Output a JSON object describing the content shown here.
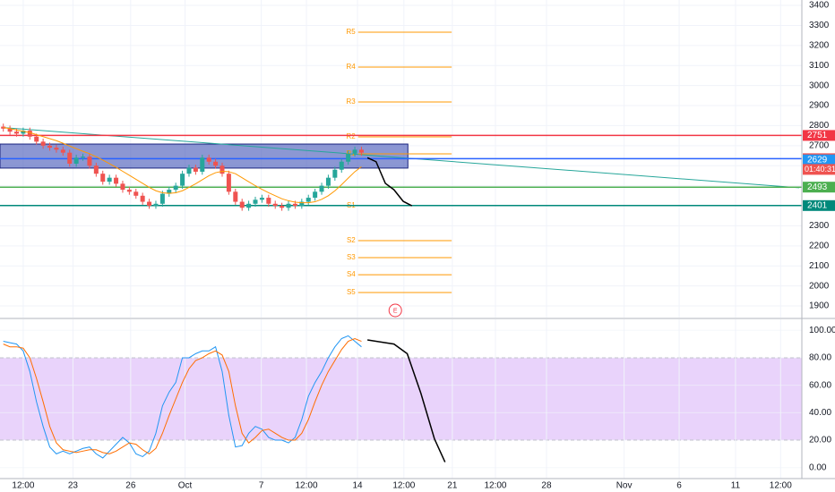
{
  "chart_data": [
    {
      "type": "candlestick",
      "xlim": [
        -0.5,
        120.4
      ],
      "ylim": [
        1842,
        3427
      ],
      "yticks": [
        1900,
        2000,
        2100,
        2200,
        2300,
        2400,
        2500,
        2600,
        2700,
        2800,
        2900,
        3000,
        3100,
        3200,
        3300,
        3400
      ],
      "grid": true,
      "up_color": "#26a69a",
      "down_color": "#ef5350",
      "candles": {
        "open": [
          2795,
          2785,
          2770,
          2760,
          2775,
          2745,
          2720,
          2700,
          2690,
          2680,
          2665,
          2610,
          2640,
          2645,
          2600,
          2560,
          2520,
          2540,
          2510,
          2480,
          2470,
          2450,
          2420,
          2400,
          2410,
          2460,
          2480,
          2500,
          2560,
          2590,
          2570,
          2640,
          2620,
          2600,
          2560,
          2470,
          2420,
          2390,
          2410,
          2430,
          2440,
          2410,
          2400,
          2390,
          2410,
          2400,
          2420,
          2440,
          2470,
          2500,
          2540,
          2580,
          2620,
          2660,
          2680
        ],
        "high": [
          2810,
          2800,
          2785,
          2790,
          2790,
          2760,
          2735,
          2715,
          2705,
          2695,
          2680,
          2655,
          2660,
          2660,
          2615,
          2575,
          2555,
          2555,
          2525,
          2495,
          2485,
          2465,
          2435,
          2425,
          2475,
          2495,
          2515,
          2575,
          2605,
          2605,
          2655,
          2655,
          2635,
          2615,
          2575,
          2485,
          2435,
          2425,
          2445,
          2455,
          2455,
          2425,
          2415,
          2425,
          2425,
          2435,
          2455,
          2485,
          2515,
          2555,
          2595,
          2635,
          2675,
          2695,
          2695
        ],
        "low": [
          2770,
          2755,
          2745,
          2745,
          2730,
          2705,
          2685,
          2675,
          2665,
          2650,
          2595,
          2595,
          2625,
          2585,
          2545,
          2505,
          2505,
          2495,
          2465,
          2455,
          2435,
          2405,
          2385,
          2385,
          2395,
          2445,
          2465,
          2485,
          2545,
          2555,
          2555,
          2605,
          2585,
          2545,
          2455,
          2405,
          2375,
          2375,
          2395,
          2415,
          2395,
          2385,
          2375,
          2375,
          2385,
          2385,
          2405,
          2425,
          2455,
          2485,
          2525,
          2565,
          2605,
          2645,
          2650
        ],
        "close": [
          2785,
          2770,
          2760,
          2775,
          2745,
          2720,
          2700,
          2690,
          2680,
          2665,
          2610,
          2640,
          2645,
          2600,
          2560,
          2520,
          2540,
          2510,
          2480,
          2470,
          2450,
          2420,
          2400,
          2410,
          2460,
          2480,
          2500,
          2560,
          2590,
          2570,
          2640,
          2620,
          2600,
          2560,
          2470,
          2420,
          2390,
          2410,
          2430,
          2440,
          2410,
          2400,
          2390,
          2410,
          2400,
          2420,
          2440,
          2470,
          2500,
          2540,
          2580,
          2620,
          2660,
          2680,
          2665
        ]
      },
      "ma": {
        "color": "#ff9800",
        "values": [
          2790,
          2785,
          2778,
          2772,
          2765,
          2755,
          2745,
          2735,
          2725,
          2712,
          2698,
          2685,
          2672,
          2660,
          2645,
          2628,
          2610,
          2592,
          2572,
          2552,
          2532,
          2512,
          2492,
          2475,
          2465,
          2462,
          2465,
          2475,
          2492,
          2510,
          2530,
          2550,
          2565,
          2572,
          2570,
          2560,
          2540,
          2520,
          2500,
          2482,
          2465,
          2450,
          2435,
          2425,
          2418,
          2415,
          2415,
          2420,
          2432,
          2450,
          2475,
          2505,
          2538,
          2570,
          2595
        ]
      },
      "zone": {
        "top": 2708,
        "bottom": 2588,
        "x_end": 61,
        "color": "#3f51b5"
      },
      "trendline": {
        "x": [
          0,
          120
        ],
        "values": [
          2790,
          2490
        ],
        "color": "#26a69a"
      },
      "projection": {
        "x": [
          54.9,
          56.2,
          57.6,
          58.9,
          60.3,
          61.6
        ],
        "values": [
          2640,
          2620,
          2512,
          2480,
          2422,
          2400
        ]
      },
      "pivot_x": [
        53.5,
        67.6
      ],
      "pivot_color": "#ff9800",
      "pivots": [
        {
          "label": "R5",
          "value": 3266
        },
        {
          "label": "R4",
          "value": 3092
        },
        {
          "label": "R3",
          "value": 2918
        },
        {
          "label": "R2",
          "value": 2744
        },
        {
          "label": "R1",
          "value": 2659
        },
        {
          "label": "S1",
          "value": 2400
        },
        {
          "label": "S2",
          "value": 2226
        },
        {
          "label": "S3",
          "value": 2141
        },
        {
          "label": "S4",
          "value": 2056
        },
        {
          "label": "S5",
          "value": 1967
        }
      ],
      "price_lines": [
        {
          "value": 2751,
          "color": "#f23645",
          "line_color": "#f23645"
        },
        {
          "value": 2635,
          "color": "#ef5350",
          "line_color": "#2962ff"
        },
        {
          "value": 2629,
          "color": "#2196f3"
        },
        {
          "value": 2493,
          "color": "#4caf50",
          "line_color": "#4caf50"
        },
        {
          "value": 2401,
          "color": "#00897b",
          "line_color": "#00897b"
        }
      ],
      "countdown": "01:40:31",
      "event": {
        "label": "E",
        "x": 59.1,
        "color": "#f23645"
      }
    },
    {
      "type": "line",
      "xlim": [
        -0.5,
        120.4
      ],
      "ylim": [
        -8,
        108
      ],
      "xticks": [
        {
          "value": 3,
          "label": "12:00"
        },
        {
          "value": 10.5,
          "label": "23"
        },
        {
          "value": 19.2,
          "label": "26"
        },
        {
          "value": 27.4,
          "label": "Oct"
        },
        {
          "value": 38.9,
          "label": "7"
        },
        {
          "value": 45.7,
          "label": "12:00"
        },
        {
          "value": 53.4,
          "label": "14"
        },
        {
          "value": 60.4,
          "label": "12:00"
        },
        {
          "value": 67.7,
          "label": "21"
        },
        {
          "value": 74.2,
          "label": "12:00"
        },
        {
          "value": 81.9,
          "label": "28"
        },
        {
          "value": 93.6,
          "label": "Nov"
        },
        {
          "value": 101.9,
          "label": "6"
        },
        {
          "value": 110.4,
          "label": "11"
        },
        {
          "value": 117.2,
          "label": "12:00"
        }
      ],
      "yticks": [
        {
          "value": 0,
          "label": "0.00"
        },
        {
          "value": 20,
          "label": "20.00"
        },
        {
          "value": 40,
          "label": "40.00"
        },
        {
          "value": 60,
          "label": "60.00"
        },
        {
          "value": 80,
          "label": "80.00"
        },
        {
          "value": 100,
          "label": "100.00"
        }
      ],
      "band": [
        20,
        80
      ],
      "band_color": "#e1c4f9",
      "lines": [
        {
          "color": "#2196f3",
          "values": [
            92,
            91,
            90,
            85,
            70,
            48,
            30,
            15,
            10,
            12,
            10,
            12,
            14,
            15,
            10,
            7,
            12,
            17,
            22,
            18,
            10,
            8,
            12,
            25,
            45,
            55,
            62,
            80,
            80,
            83,
            85,
            85,
            88,
            70,
            38,
            15,
            16,
            25,
            30,
            28,
            22,
            20,
            20,
            18,
            22,
            35,
            52,
            62,
            70,
            80,
            88,
            94,
            96,
            92,
            88
          ]
        },
        {
          "color": "#ff6d00",
          "values": [
            90,
            88,
            88,
            87,
            80,
            65,
            48,
            30,
            18,
            13,
            12,
            11,
            12,
            13,
            13,
            11,
            10,
            12,
            15,
            18,
            17,
            13,
            10,
            14,
            25,
            38,
            50,
            62,
            72,
            78,
            80,
            83,
            85,
            82,
            70,
            45,
            25,
            18,
            22,
            27,
            28,
            25,
            22,
            20,
            20,
            25,
            35,
            48,
            60,
            70,
            78,
            86,
            92,
            94,
            92
          ]
        }
      ],
      "projection": {
        "x": [
          54.9,
          58.9,
          60.9,
          62.97,
          65,
          66.6
        ],
        "values": [
          93,
          90,
          83,
          54,
          21,
          4
        ]
      }
    }
  ]
}
